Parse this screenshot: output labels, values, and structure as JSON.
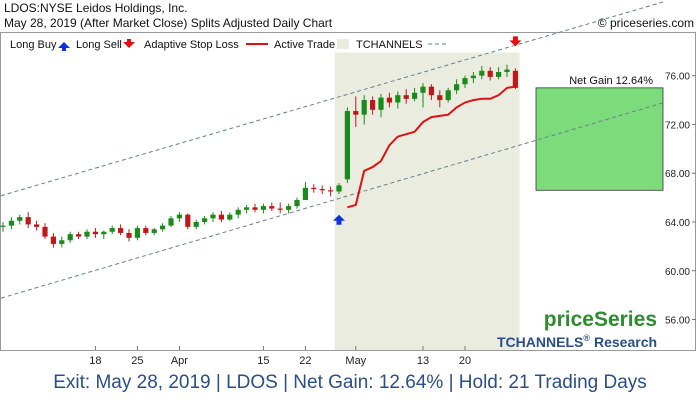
{
  "header": {
    "title": "LDOS:NYSE Leidos Holdings, Inc.",
    "subtitle": "May 28, 2019 (After Market Close)  Splits Adjusted Daily Chart",
    "copyright": "© priceseries.com"
  },
  "legend": {
    "long_buy": "Long Buy",
    "long_sell": "Long Sell",
    "adaptive_stop": "Adaptive Stop Loss",
    "active_trade": "Active Trade",
    "tchannels": "TCHANNELS"
  },
  "net_gain_label": "Net Gain 12.64%",
  "brand": {
    "priceseries": "priceSeries",
    "tchannels": "TCHANNELS",
    "registered": "®",
    "research": "Research"
  },
  "footer": "Exit: May 28, 2019 | LDOS | Net Gain: 12.64% | Hold: 21 Trading Days",
  "colors": {
    "up": "#1a8a1a",
    "down": "#c01818",
    "stop": "#e01010",
    "active_trade_bg": "#e9ecdf",
    "gain_box": "#7cdc7c",
    "channel": "#6a7d92",
    "brand_green": "#2e8b2e",
    "brand_blue": "#2a4f86"
  },
  "chart_data": {
    "type": "candlestick",
    "y_ticks": [
      56,
      60,
      64,
      68,
      72,
      76
    ],
    "y_tick_labels": [
      "56.00",
      "60.00",
      "64.00",
      "68.00",
      "72.00",
      "76.00"
    ],
    "ylim": [
      53.5,
      79.5
    ],
    "x_tick_labels": [
      {
        "index": 11,
        "label": "18"
      },
      {
        "index": 16,
        "label": "25"
      },
      {
        "index": 21,
        "label": "Apr"
      },
      {
        "index": 31,
        "label": "15"
      },
      {
        "index": 36,
        "label": "22"
      },
      {
        "index": 42,
        "label": "May"
      },
      {
        "index": 50,
        "label": "13"
      },
      {
        "index": 55,
        "label": "20"
      }
    ],
    "candles": [
      [
        63.6,
        64.0,
        63.2,
        63.7
      ],
      [
        63.7,
        64.4,
        63.4,
        64.1
      ],
      [
        64.1,
        64.6,
        63.8,
        64.4
      ],
      [
        64.4,
        64.8,
        63.5,
        63.8
      ],
      [
        63.8,
        64.1,
        63.3,
        63.6
      ],
      [
        63.6,
        63.9,
        62.6,
        62.8
      ],
      [
        62.8,
        63.1,
        61.9,
        62.2
      ],
      [
        62.2,
        62.8,
        61.9,
        62.5
      ],
      [
        62.5,
        63.2,
        62.3,
        63.0
      ],
      [
        63.0,
        63.2,
        62.6,
        62.8
      ],
      [
        62.8,
        63.4,
        62.6,
        63.2
      ],
      [
        63.2,
        63.5,
        62.7,
        63.0
      ],
      [
        63.0,
        63.3,
        62.6,
        63.2
      ],
      [
        63.2,
        63.7,
        63.0,
        63.5
      ],
      [
        63.5,
        63.8,
        62.9,
        63.1
      ],
      [
        63.1,
        63.4,
        62.4,
        62.7
      ],
      [
        62.7,
        63.7,
        62.5,
        63.5
      ],
      [
        63.5,
        63.7,
        62.9,
        63.1
      ],
      [
        63.1,
        63.5,
        62.9,
        63.4
      ],
      [
        63.4,
        63.9,
        63.2,
        63.7
      ],
      [
        63.7,
        64.5,
        63.6,
        64.3
      ],
      [
        64.3,
        64.8,
        64.0,
        64.6
      ],
      [
        64.6,
        64.7,
        63.4,
        63.6
      ],
      [
        63.6,
        64.2,
        63.4,
        64.0
      ],
      [
        64.0,
        64.5,
        63.8,
        64.3
      ],
      [
        64.3,
        64.8,
        64.0,
        64.6
      ],
      [
        64.6,
        64.9,
        64.0,
        64.2
      ],
      [
        64.2,
        64.8,
        64.1,
        64.6
      ],
      [
        64.6,
        65.2,
        64.3,
        65.0
      ],
      [
        65.0,
        65.4,
        64.7,
        65.2
      ],
      [
        65.2,
        65.5,
        64.8,
        65.0
      ],
      [
        65.0,
        65.5,
        64.7,
        65.3
      ],
      [
        65.3,
        65.6,
        64.9,
        65.1
      ],
      [
        65.1,
        65.6,
        64.7,
        65.0
      ],
      [
        65.0,
        65.5,
        64.7,
        65.3
      ],
      [
        65.3,
        66.0,
        65.1,
        65.8
      ],
      [
        65.8,
        67.3,
        65.8,
        66.8
      ],
      [
        66.8,
        67.1,
        66.4,
        66.7
      ],
      [
        66.7,
        67.0,
        66.3,
        66.6
      ],
      [
        66.6,
        66.9,
        66.1,
        66.5
      ],
      [
        66.5,
        67.2,
        66.3,
        67.0
      ],
      [
        67.5,
        73.4,
        67.2,
        73.1
      ],
      [
        73.1,
        74.3,
        71.8,
        72.8
      ],
      [
        72.8,
        74.4,
        72.0,
        74.0
      ],
      [
        74.0,
        74.3,
        72.8,
        73.2
      ],
      [
        73.2,
        74.5,
        72.6,
        74.2
      ],
      [
        74.2,
        74.6,
        73.4,
        73.8
      ],
      [
        73.8,
        74.7,
        73.3,
        74.4
      ],
      [
        74.4,
        74.9,
        73.7,
        74.1
      ],
      [
        74.1,
        75.0,
        73.9,
        74.6
      ],
      [
        74.6,
        75.4,
        73.4,
        75.1
      ],
      [
        75.1,
        75.3,
        74.0,
        74.4
      ],
      [
        74.4,
        74.8,
        73.4,
        74.0
      ],
      [
        74.0,
        75.0,
        73.8,
        74.8
      ],
      [
        74.8,
        75.7,
        74.5,
        75.3
      ],
      [
        75.3,
        76.0,
        75.0,
        75.8
      ],
      [
        75.8,
        76.3,
        75.4,
        76.0
      ],
      [
        76.0,
        76.8,
        75.7,
        76.4
      ],
      [
        76.4,
        76.7,
        75.6,
        75.9
      ],
      [
        75.9,
        76.7,
        75.7,
        76.3
      ],
      [
        76.3,
        76.9,
        75.9,
        76.5
      ],
      [
        76.4,
        76.6,
        74.9,
        75.0
      ]
    ],
    "adaptive_stop": [
      [
        41,
        65.2
      ],
      [
        42,
        65.4
      ],
      [
        43,
        68.2
      ],
      [
        44,
        68.5
      ],
      [
        45,
        69.0
      ],
      [
        46,
        70.3
      ],
      [
        47,
        71.0
      ],
      [
        48,
        71.2
      ],
      [
        49,
        71.4
      ],
      [
        50,
        72.2
      ],
      [
        51,
        72.6
      ],
      [
        52,
        72.7
      ],
      [
        53,
        72.8
      ],
      [
        54,
        73.4
      ],
      [
        55,
        73.8
      ],
      [
        56,
        74.0
      ],
      [
        57,
        74.1
      ],
      [
        58,
        74.1
      ],
      [
        59,
        74.4
      ],
      [
        60,
        75.0
      ],
      [
        61,
        75.1
      ]
    ],
    "channel_upper": [
      [
        0,
        66.2
      ],
      [
        61,
        78.5
      ]
    ],
    "channel_lower": [
      [
        0,
        57.8
      ],
      [
        61,
        70.2
      ]
    ],
    "long_buy": {
      "index": 40,
      "price": 64.1
    },
    "long_sell": {
      "index": 61,
      "price": 78.9
    },
    "active_trade_range": [
      40,
      61
    ],
    "entry_price": 66.6,
    "exit_price": 75.0
  }
}
